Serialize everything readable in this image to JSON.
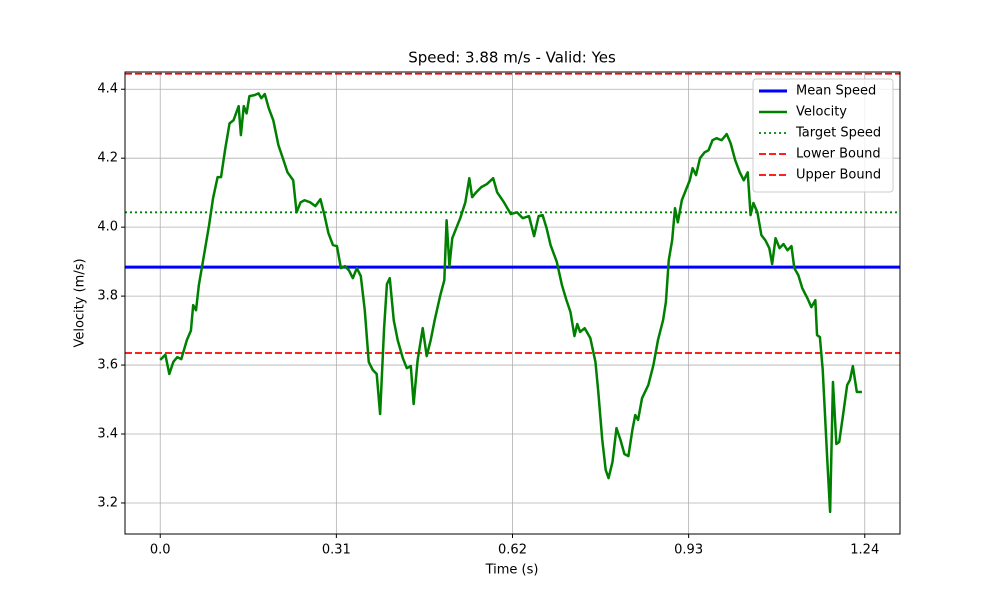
{
  "chart_data": {
    "type": "line",
    "title": "Speed: 3.88 m/s - Valid: Yes",
    "xlabel": "Time (s)",
    "ylabel": "Velocity (m/s)",
    "xlim": [
      -0.062,
      1.302
    ],
    "ylim": [
      3.11,
      4.45
    ],
    "xticks": [
      {
        "value": 0,
        "label": "0.0"
      },
      0.31,
      0.62,
      0.93,
      1.24
    ],
    "yticks": [
      3.2,
      3.4,
      3.6,
      3.8,
      {
        "value": 4,
        "label": "4.0"
      },
      4.2,
      4.4
    ],
    "grid": true,
    "legend": "upper right",
    "x": [
      0,
      0.009,
      0.016,
      0.023,
      0.03,
      0.037,
      0.047,
      0.054,
      0.058,
      0.063,
      0.068,
      0.075,
      0.086,
      0.093,
      0.101,
      0.107,
      0.114,
      0.122,
      0.129,
      0.138,
      0.142,
      0.147,
      0.152,
      0.157,
      0.166,
      0.173,
      0.178,
      0.184,
      0.191,
      0.199,
      0.208,
      0.217,
      0.224,
      0.234,
      0.24,
      0.247,
      0.254,
      0.264,
      0.273,
      0.282,
      0.289,
      0.296,
      0.304,
      0.311,
      0.318,
      0.325,
      0.332,
      0.339,
      0.346,
      0.353,
      0.36,
      0.367,
      0.374,
      0.381,
      0.387,
      0.394,
      0.399,
      0.404,
      0.411,
      0.418,
      0.427,
      0.434,
      0.441,
      0.446,
      0.453,
      0.462,
      0.469,
      0.476,
      0.483,
      0.493,
      0.5,
      0.504,
      0.509,
      0.514,
      0.521,
      0.528,
      0.537,
      0.544,
      0.549,
      0.556,
      0.565,
      0.575,
      0.586,
      0.593,
      0.605,
      0.617,
      0.628,
      0.638,
      0.649,
      0.658,
      0.666,
      0.673,
      0.68,
      0.687,
      0.698,
      0.707,
      0.715,
      0.722,
      0.729,
      0.734,
      0.739,
      0.747,
      0.757,
      0.766,
      0.771,
      0.778,
      0.784,
      0.789,
      0.796,
      0.803,
      0.81,
      0.817,
      0.824,
      0.831,
      0.836,
      0.841,
      0.848,
      0.859,
      0.868,
      0.876,
      0.885,
      0.89,
      0.895,
      0.901,
      0.906,
      0.911,
      0.918,
      0.925,
      0.932,
      0.937,
      0.943,
      0.95,
      0.958,
      0.965,
      0.972,
      0.979,
      0.988,
      0.997,
      1.004,
      1.012,
      1.02,
      1.027,
      1.034,
      1.039,
      1.044,
      1.051,
      1.058,
      1.065,
      1.072,
      1.077,
      1.083,
      1.09,
      1.097,
      1.104,
      1.111,
      1.116,
      1.123,
      1.13,
      1.139,
      1.146,
      1.153,
      1.156,
      1.161,
      1.166,
      1.174,
      1.179,
      1.184,
      1.19,
      1.195,
      1.202,
      1.209,
      1.214,
      1.219,
      1.226,
      1.235
    ],
    "series": [
      {
        "name": "Mean Speed",
        "color": "#0000ff",
        "style": "solid",
        "width": 3,
        "value": 3.884
      },
      {
        "name": "Velocity",
        "color": "#008000",
        "style": "solid",
        "width": 2.5,
        "values": [
          3.615,
          3.63,
          3.574,
          3.609,
          3.623,
          3.617,
          3.673,
          3.7,
          3.774,
          3.759,
          3.832,
          3.899,
          4.006,
          4.084,
          4.145,
          4.145,
          4.223,
          4.301,
          4.31,
          4.351,
          4.267,
          4.351,
          4.33,
          4.38,
          4.383,
          4.388,
          4.374,
          4.386,
          4.345,
          4.31,
          4.238,
          4.194,
          4.159,
          4.136,
          4.043,
          4.072,
          4.078,
          4.072,
          4.061,
          4.081,
          4.035,
          3.983,
          3.948,
          3.945,
          3.881,
          3.887,
          3.875,
          3.852,
          3.881,
          3.858,
          3.759,
          3.609,
          3.586,
          3.574,
          3.458,
          3.707,
          3.835,
          3.852,
          3.73,
          3.672,
          3.62,
          3.591,
          3.597,
          3.487,
          3.614,
          3.707,
          3.626,
          3.672,
          3.73,
          3.803,
          3.846,
          4.02,
          3.887,
          3.968,
          3.997,
          4.026,
          4.072,
          4.142,
          4.087,
          4.101,
          4.116,
          4.125,
          4.142,
          4.101,
          4.072,
          4.038,
          4.043,
          4.026,
          4.032,
          3.974,
          4.032,
          4.035,
          3.997,
          3.948,
          3.899,
          3.832,
          3.788,
          3.754,
          3.684,
          3.719,
          3.696,
          3.707,
          3.678,
          3.609,
          3.522,
          3.383,
          3.296,
          3.272,
          3.319,
          3.417,
          3.383,
          3.342,
          3.336,
          3.412,
          3.455,
          3.441,
          3.504,
          3.542,
          3.6,
          3.672,
          3.73,
          3.783,
          3.904,
          3.962,
          4.055,
          4.014,
          4.078,
          4.107,
          4.136,
          4.171,
          4.151,
          4.2,
          4.217,
          4.223,
          4.252,
          4.258,
          4.252,
          4.27,
          4.243,
          4.194,
          4.159,
          4.136,
          4.159,
          4.035,
          4.07,
          4.043,
          3.977,
          3.962,
          3.939,
          3.893,
          3.968,
          3.939,
          3.951,
          3.933,
          3.945,
          3.881,
          3.861,
          3.823,
          3.794,
          3.768,
          3.788,
          3.687,
          3.681,
          3.586,
          3.325,
          3.174,
          3.551,
          3.371,
          3.377,
          3.458,
          3.542,
          3.557,
          3.597,
          3.522,
          3.522
        ]
      },
      {
        "name": "Target Speed",
        "color": "#008000",
        "style": "dotted",
        "width": 1.8,
        "value": 4.043
      },
      {
        "name": "Lower Bound",
        "color": "#ff0000",
        "style": "dashed",
        "width": 1.8,
        "value": 3.635
      },
      {
        "name": "Upper Bound",
        "color": "#ff0000",
        "style": "dashed",
        "width": 1.8,
        "value": 4.445
      }
    ]
  }
}
